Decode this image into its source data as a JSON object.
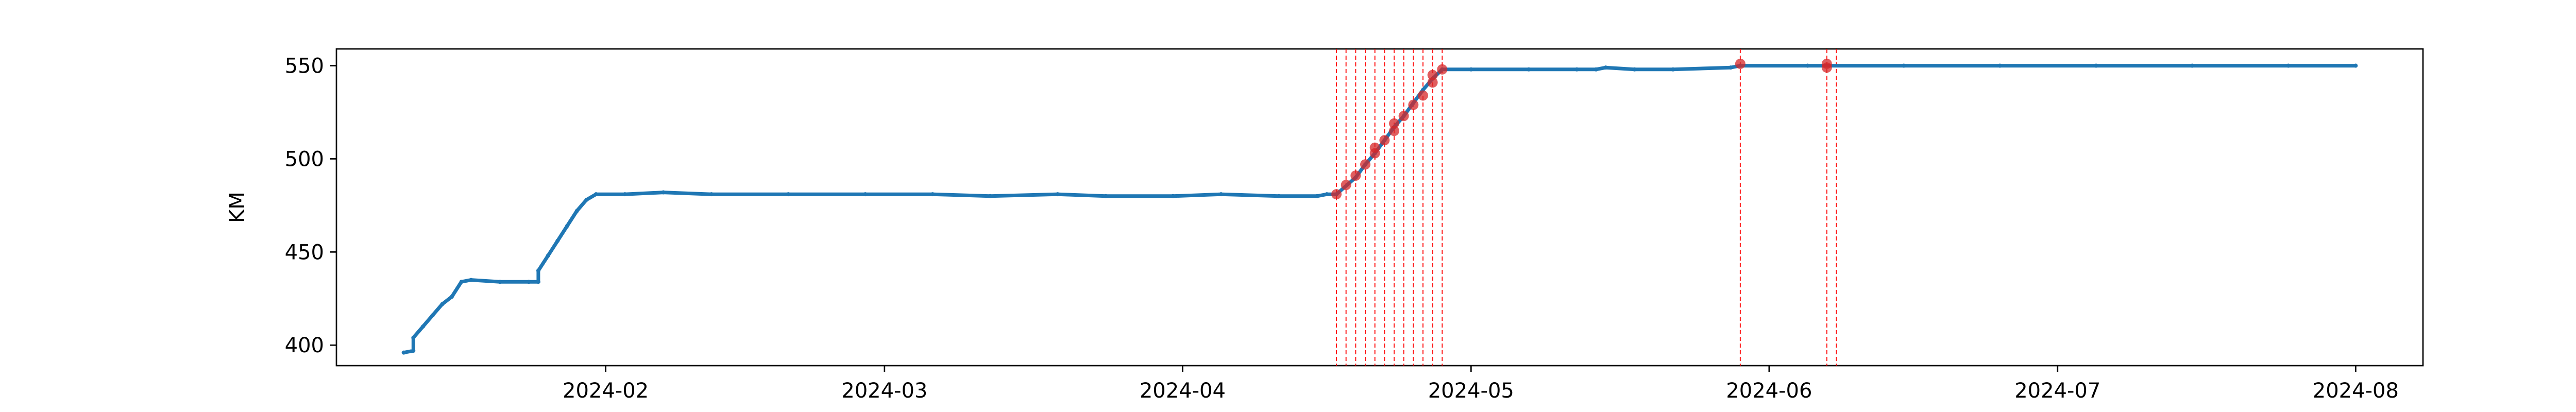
{
  "chart_data": {
    "type": "line",
    "title": "",
    "xlabel": "",
    "ylabel": "KM",
    "x_ticks": [
      "2024-02",
      "2024-03",
      "2024-04",
      "2024-05",
      "2024-06",
      "2024-07",
      "2024-08"
    ],
    "y_ticks": [
      400,
      450,
      500,
      550
    ],
    "xlim": [
      "2024-01-04",
      "2024-08-08"
    ],
    "ylim": [
      389,
      559
    ],
    "grid": false,
    "legend": "none",
    "series": [
      {
        "color": "#1f77b4",
        "points": [
          [
            "2024-01-11",
            396
          ],
          [
            "2024-01-12",
            397
          ],
          [
            "2024-01-12",
            404
          ],
          [
            "2024-01-13",
            410
          ],
          [
            "2024-01-14",
            416
          ],
          [
            "2024-01-15",
            422
          ],
          [
            "2024-01-16",
            426
          ],
          [
            "2024-01-17",
            434
          ],
          [
            "2024-01-18",
            435
          ],
          [
            "2024-01-21",
            434
          ],
          [
            "2024-01-24",
            434
          ],
          [
            "2024-01-25",
            434
          ],
          [
            "2024-01-25",
            440
          ],
          [
            "2024-01-26",
            448
          ],
          [
            "2024-01-27",
            456
          ],
          [
            "2024-01-28",
            464
          ],
          [
            "2024-01-29",
            472
          ],
          [
            "2024-01-30",
            478
          ],
          [
            "2024-01-31",
            481
          ],
          [
            "2024-02-03",
            481
          ],
          [
            "2024-02-07",
            482
          ],
          [
            "2024-02-12",
            481
          ],
          [
            "2024-02-20",
            481
          ],
          [
            "2024-02-28",
            481
          ],
          [
            "2024-03-06",
            481
          ],
          [
            "2024-03-12",
            480
          ],
          [
            "2024-03-19",
            481
          ],
          [
            "2024-03-24",
            480
          ],
          [
            "2024-03-31",
            480
          ],
          [
            "2024-04-05",
            481
          ],
          [
            "2024-04-11",
            480
          ],
          [
            "2024-04-15",
            480
          ],
          [
            "2024-04-16",
            481
          ],
          [
            "2024-04-17",
            481
          ],
          [
            "2024-04-19",
            490
          ],
          [
            "2024-04-20",
            497
          ],
          [
            "2024-04-21",
            503
          ],
          [
            "2024-04-22",
            510
          ],
          [
            "2024-04-23",
            517
          ],
          [
            "2024-04-24",
            523
          ],
          [
            "2024-04-25",
            530
          ],
          [
            "2024-04-26",
            537
          ],
          [
            "2024-04-27",
            543
          ],
          [
            "2024-04-28",
            548
          ],
          [
            "2024-05-01",
            548
          ],
          [
            "2024-05-07",
            548
          ],
          [
            "2024-05-12",
            548
          ],
          [
            "2024-05-14",
            548
          ],
          [
            "2024-05-15",
            549
          ],
          [
            "2024-05-18",
            548
          ],
          [
            "2024-05-22",
            548
          ],
          [
            "2024-05-28",
            549
          ],
          [
            "2024-05-29",
            550
          ],
          [
            "2024-06-05",
            550
          ],
          [
            "2024-06-15",
            550
          ],
          [
            "2024-06-25",
            550
          ],
          [
            "2024-07-05",
            550
          ],
          [
            "2024-07-15",
            550
          ],
          [
            "2024-07-25",
            550
          ],
          [
            "2024-08-01",
            550
          ]
        ]
      }
    ],
    "markers": {
      "color": "#d62728",
      "points": [
        [
          "2024-04-17",
          481
        ],
        [
          "2024-04-18",
          486
        ],
        [
          "2024-04-19",
          491
        ],
        [
          "2024-04-20",
          497
        ],
        [
          "2024-04-21",
          503
        ],
        [
          "2024-04-21",
          506
        ],
        [
          "2024-04-22",
          510
        ],
        [
          "2024-04-23",
          515
        ],
        [
          "2024-04-23",
          519
        ],
        [
          "2024-04-24",
          523
        ],
        [
          "2024-04-25",
          529
        ],
        [
          "2024-04-26",
          534
        ],
        [
          "2024-04-27",
          541
        ],
        [
          "2024-04-27",
          545
        ],
        [
          "2024-04-28",
          548
        ],
        [
          "2024-05-29",
          551
        ],
        [
          "2024-06-07",
          549
        ],
        [
          "2024-06-07",
          551
        ]
      ]
    },
    "vlines": {
      "color": "#ff0000",
      "style": "dashed",
      "x": [
        "2024-04-17",
        "2024-04-18",
        "2024-04-19",
        "2024-04-20",
        "2024-04-21",
        "2024-04-22",
        "2024-04-23",
        "2024-04-24",
        "2024-04-25",
        "2024-04-26",
        "2024-04-27",
        "2024-04-28",
        "2024-05-29",
        "2024-06-07",
        "2024-06-08"
      ]
    }
  }
}
